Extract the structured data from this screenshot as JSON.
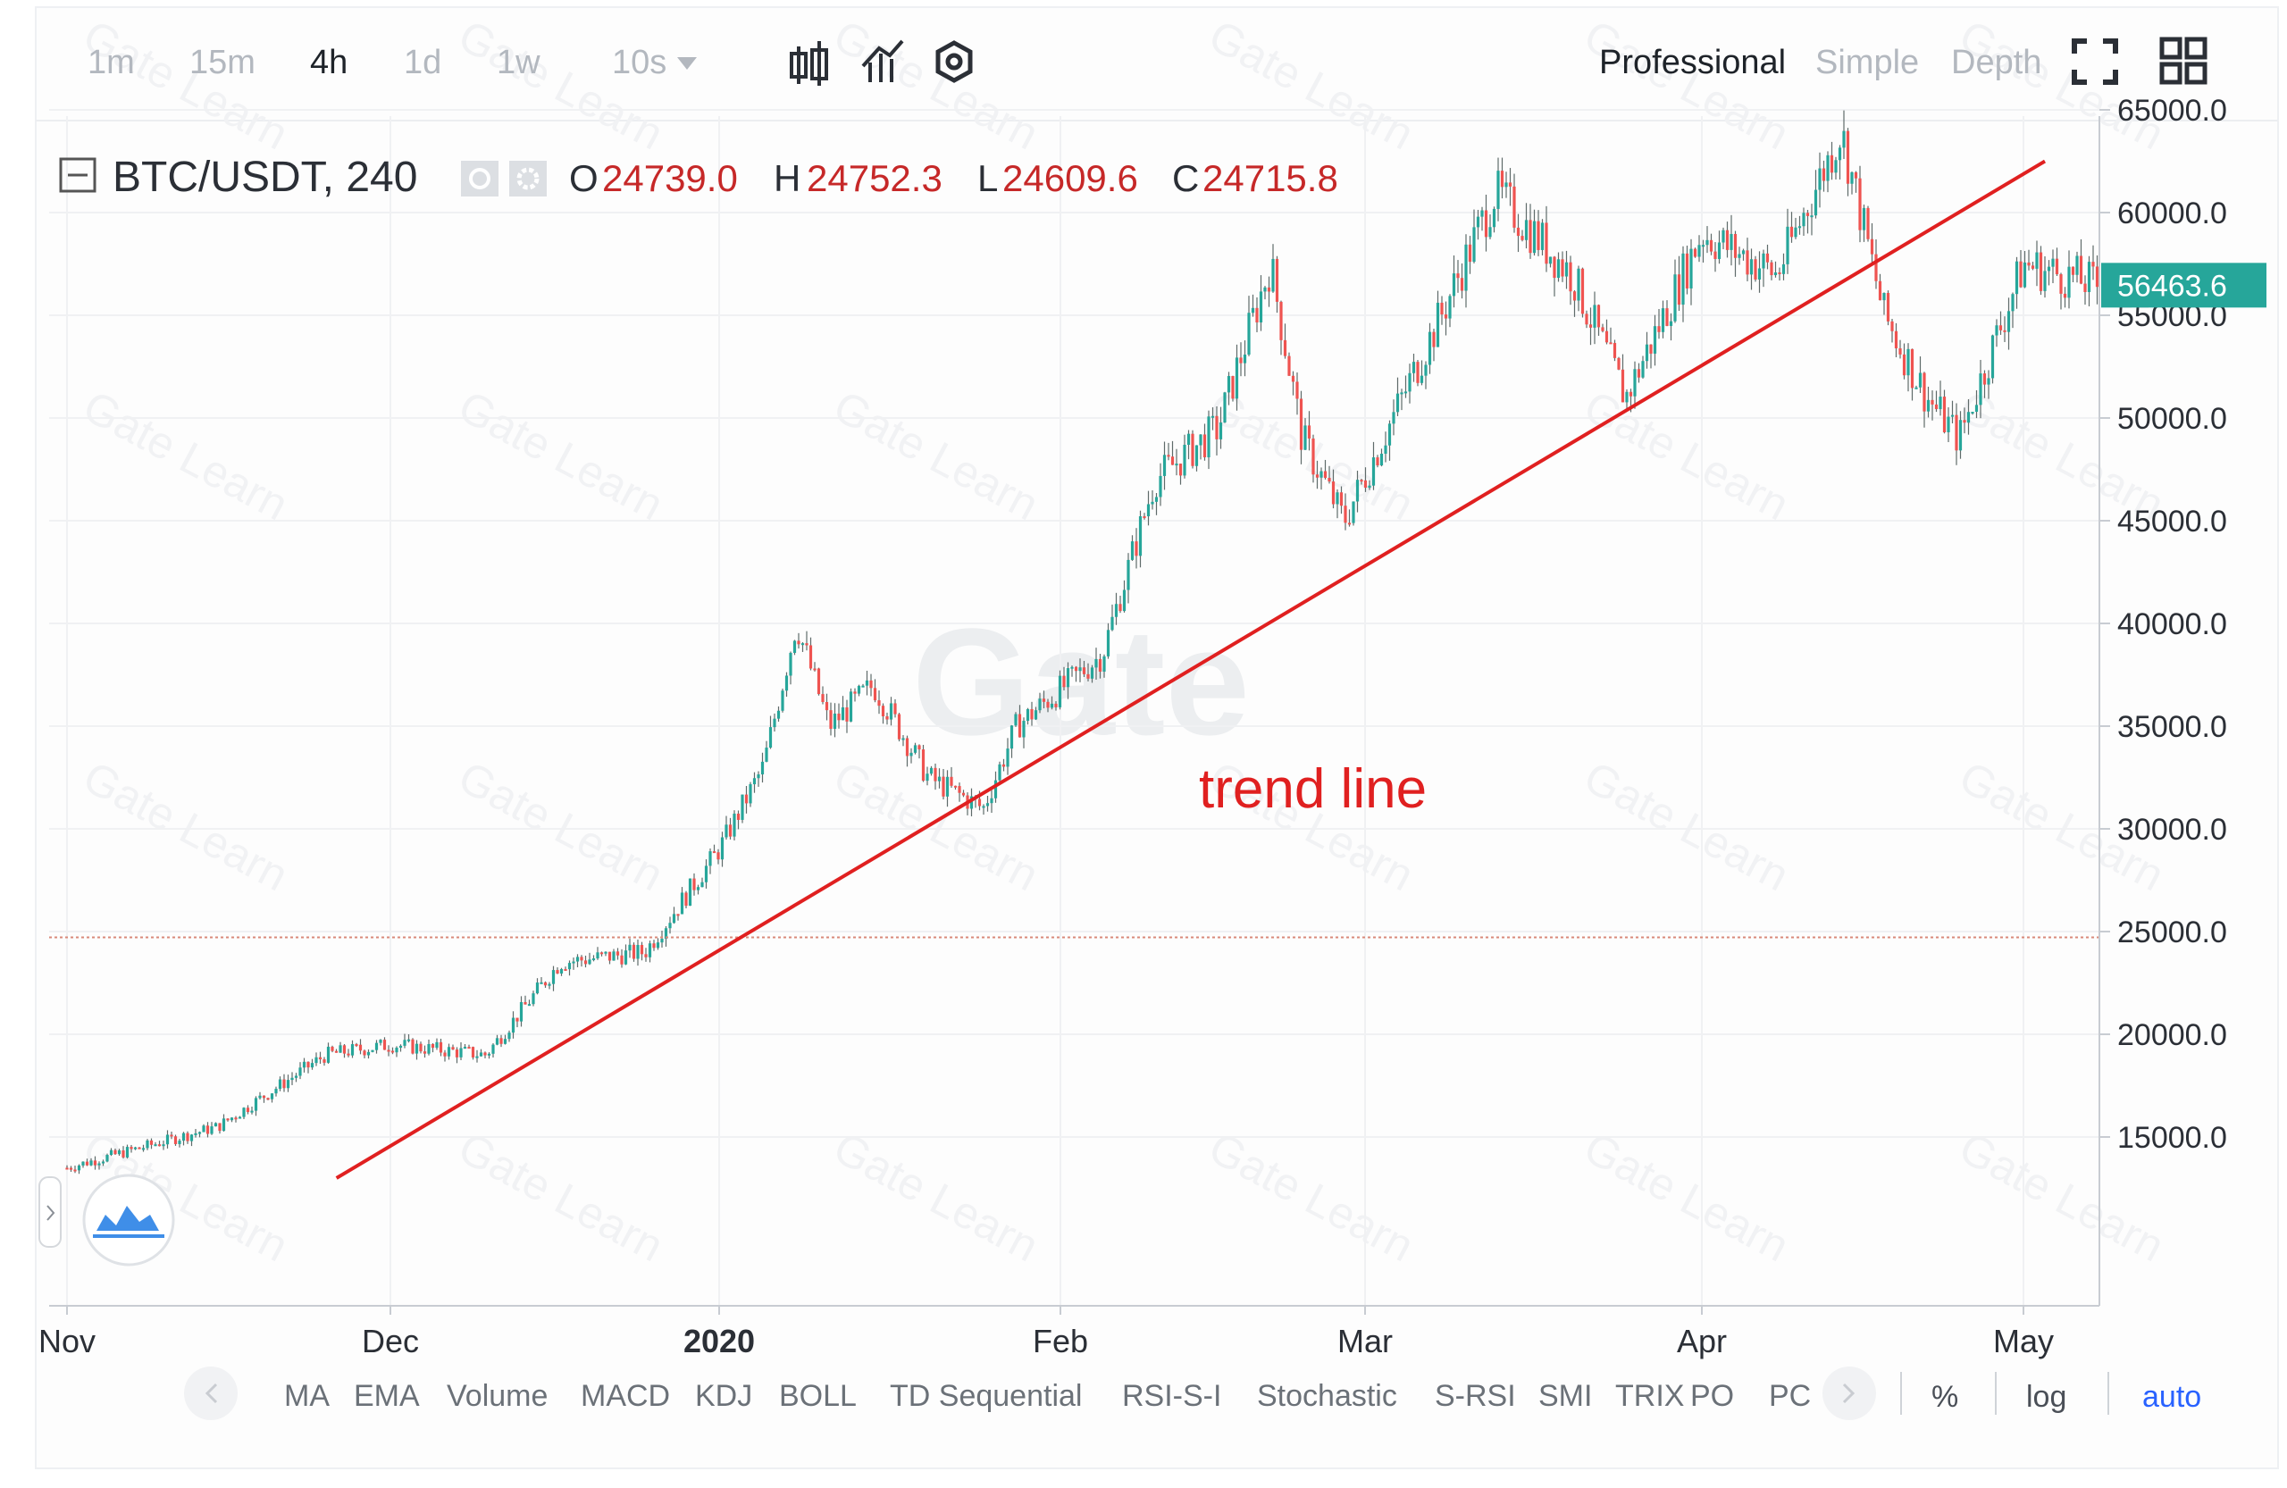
{
  "toolbar": {
    "intervals": [
      {
        "label": "1m",
        "active": false
      },
      {
        "label": "15m",
        "active": false
      },
      {
        "label": "4h",
        "active": true
      },
      {
        "label": "1d",
        "active": false
      },
      {
        "label": "1w",
        "active": false
      }
    ],
    "dropdown_label": "10s",
    "tool_icons": [
      "candlestick-icon",
      "indicator-chart-icon",
      "settings-hex-icon"
    ],
    "modes": [
      {
        "label": "Professional",
        "active": true
      },
      {
        "label": "Simple",
        "active": false
      },
      {
        "label": "Depth",
        "active": false
      }
    ],
    "right_icons": [
      "fullscreen-icon",
      "grid-layout-icon"
    ]
  },
  "legend": {
    "symbol": "BTC/USDT, 240",
    "open_label": "O",
    "open": "24739.0",
    "high_label": "H",
    "high": "24752.3",
    "low_label": "L",
    "low": "24609.6",
    "close_label": "C",
    "close": "24715.8"
  },
  "price_badge": "56463.6",
  "annotation": "trend line",
  "watermark": {
    "large": "Gate",
    "small": "Gate Learn"
  },
  "indicators": [
    "MA",
    "EMA",
    "Volume",
    "MACD",
    "KDJ",
    "BOLL",
    "TD Sequential",
    "RSI-S-I",
    "Stochastic",
    "S-RSI",
    "SMI",
    "TRIX",
    "PO",
    "PC"
  ],
  "scale_options": [
    {
      "label": "%",
      "active": false
    },
    {
      "label": "log",
      "active": false
    },
    {
      "label": "auto",
      "active": true
    }
  ],
  "colors": {
    "up": "#26a69a",
    "down": "#ef5350",
    "trend": "#e02020",
    "price_red": "#c62828",
    "badge": "#26a69a",
    "active_blue": "#2962ff"
  },
  "chart_data": {
    "type": "candlestick",
    "title": "",
    "xlabel": "",
    "ylabel": "",
    "x_ticks": [
      "Nov",
      "Dec",
      "2020",
      "Feb",
      "Mar",
      "Apr",
      "May"
    ],
    "y_ticks": [
      "65000.0",
      "60000.0",
      "55000.0",
      "50000.0",
      "45000.0",
      "40000.0",
      "35000.0",
      "30000.0",
      "25000.0",
      "20000.0",
      "15000.0"
    ],
    "ylim": [
      10000,
      68000
    ],
    "grid": true,
    "price_series": {
      "x": [
        "Nov 1",
        "Nov 15",
        "Nov 25",
        "Dec 1",
        "Dec 10",
        "Dec 17",
        "Dec 25",
        "Jan 1",
        "Jan 5",
        "Jan 8",
        "Jan 11",
        "Jan 15",
        "Jan 20",
        "Jan 25",
        "Jan 28",
        "Feb 5",
        "Feb 10",
        "Feb 16",
        "Feb 21",
        "Feb 24",
        "Feb 28",
        "Mar 8",
        "Mar 13",
        "Mar 20",
        "Mar 25",
        "Apr 1",
        "Apr 8",
        "Apr 14",
        "Apr 18",
        "Apr 22",
        "Apr 25",
        "May 1",
        "May 8"
      ],
      "close": [
        13500,
        15500,
        19000,
        19500,
        19000,
        23500,
        24000,
        29000,
        33000,
        40000,
        35000,
        37000,
        32500,
        31000,
        35000,
        38500,
        47000,
        49500,
        57500,
        49000,
        45000,
        55000,
        61000,
        57000,
        51000,
        59000,
        57000,
        64000,
        55000,
        51000,
        49000,
        57500,
        56463.6
      ]
    },
    "trend_line": {
      "label": "trend line",
      "start": {
        "x": "Nov 26",
        "y": 13000
      },
      "end": {
        "x": "May 3",
        "y": 62500
      }
    },
    "reference_line": {
      "y": 24715.8
    },
    "last_price": 56463.6
  }
}
